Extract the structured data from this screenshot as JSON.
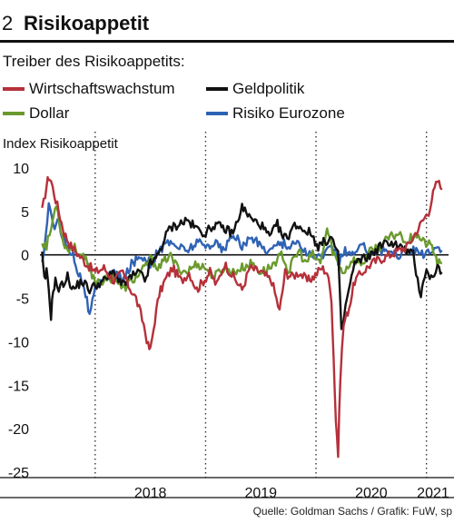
{
  "header": {
    "number": "2",
    "title": "Risikoappetit"
  },
  "subtitle": "Treiber des Risikoappetits:",
  "source": "Quelle: Goldman Sachs / Grafik: FuW, sp",
  "colors": {
    "Wirtschaftswachstum": "#b5303a",
    "Dollar": "#6a9a2d",
    "Geldpolitik": "#111111",
    "Risiko Eurozone": "#2f62b4"
  },
  "chart_data": {
    "type": "line",
    "ylabel": "Index Risikoappetit",
    "ylim": [
      -25,
      10
    ],
    "yticks": [
      10,
      5,
      0,
      -5,
      -10,
      -15,
      -20,
      -25
    ],
    "xlim": [
      2017.5,
      2021.2
    ],
    "xtick_labels": [
      "2018",
      "2019",
      "2020",
      "2021"
    ],
    "grid": "vertical-dotted",
    "legend_position": "top",
    "series": [
      {
        "name": "Wirtschaftswachstum",
        "color": "#b5303a",
        "x": [
          2017.52,
          2017.56,
          2017.58,
          2017.6,
          2017.63,
          2017.67,
          2017.72,
          2017.78,
          2017.85,
          2017.92,
          2018.0,
          2018.08,
          2018.17,
          2018.25,
          2018.3,
          2018.37,
          2018.44,
          2018.48,
          2018.5,
          2018.54,
          2018.58,
          2018.63,
          2018.7,
          2018.78,
          2018.85,
          2018.92,
          2018.98,
          2019.04,
          2019.1,
          2019.17,
          2019.25,
          2019.33,
          2019.4,
          2019.5,
          2019.6,
          2019.67,
          2019.72,
          2019.78,
          2019.85,
          2019.92,
          2019.98,
          2020.05,
          2020.1,
          2020.14,
          2020.16,
          2020.18,
          2020.2,
          2020.22,
          2020.25,
          2020.3,
          2020.35,
          2020.42,
          2020.5,
          2020.58,
          2020.67,
          2020.75,
          2020.83,
          2020.9,
          2020.97,
          2021.02,
          2021.06,
          2021.1,
          2021.14
        ],
        "y": [
          5,
          8,
          9,
          8.5,
          7,
          5,
          2.5,
          1,
          0,
          -1,
          -2,
          -1.5,
          -3,
          -2,
          -3.5,
          -5,
          -8,
          -10.5,
          -11,
          -7.5,
          -4.5,
          -3,
          -1.5,
          -3,
          -2,
          -4,
          -3,
          -2,
          -3.5,
          -1,
          -2.5,
          -4,
          -1.5,
          -2,
          -3,
          -6.5,
          -2,
          -2.5,
          -2,
          -3,
          -2.5,
          -1.5,
          -2,
          -5,
          -12,
          -19,
          -23,
          -14,
          -8,
          -6,
          -3,
          -2,
          -1,
          -0.5,
          0,
          0.5,
          1,
          2.5,
          4,
          5,
          7,
          8.5,
          7.5
        ]
      },
      {
        "name": "Dollar",
        "color": "#6a9a2d",
        "x": [
          2017.52,
          2017.56,
          2017.6,
          2017.65,
          2017.7,
          2017.75,
          2017.8,
          2017.87,
          2017.93,
          2018.0,
          2018.08,
          2018.17,
          2018.25,
          2018.33,
          2018.42,
          2018.5,
          2018.58,
          2018.67,
          2018.75,
          2018.83,
          2018.92,
          2019.0,
          2019.08,
          2019.17,
          2019.25,
          2019.33,
          2019.42,
          2019.5,
          2019.58,
          2019.65,
          2019.7,
          2019.75,
          2019.8,
          2019.85,
          2019.9,
          2019.97,
          2020.04,
          2020.1,
          2020.15,
          2020.2,
          2020.25,
          2020.33,
          2020.42,
          2020.5,
          2020.58,
          2020.67,
          2020.75,
          2020.83,
          2020.9,
          2020.97,
          2021.05,
          2021.1,
          2021.14
        ],
        "y": [
          1.5,
          1,
          3,
          6,
          2,
          0.5,
          1,
          0,
          -1,
          -3,
          -3,
          -2.5,
          -4,
          -3,
          -2,
          -0.5,
          -1.5,
          0,
          -1.5,
          -2,
          -1,
          -1.5,
          -2.5,
          -1.5,
          -2,
          -1.5,
          -1,
          -2,
          -1.5,
          -0.5,
          0,
          -2,
          -0.5,
          0.5,
          -1,
          0,
          -1,
          3,
          0.5,
          -1,
          -2,
          -0.5,
          -1,
          0.5,
          1,
          2,
          2.5,
          1.5,
          2.5,
          1.5,
          1,
          -1,
          -1
        ]
      },
      {
        "name": "Geldpolitik",
        "color": "#111111",
        "x": [
          2017.52,
          2017.54,
          2017.56,
          2017.58,
          2017.6,
          2017.62,
          2017.64,
          2017.67,
          2017.7,
          2017.75,
          2017.8,
          2017.88,
          2017.95,
          2018.0,
          2018.08,
          2018.17,
          2018.25,
          2018.33,
          2018.4,
          2018.45,
          2018.5,
          2018.55,
          2018.6,
          2018.67,
          2018.75,
          2018.83,
          2018.92,
          2019.0,
          2019.08,
          2019.17,
          2019.25,
          2019.33,
          2019.42,
          2019.5,
          2019.58,
          2019.65,
          2019.7,
          2019.74,
          2019.78,
          2019.82,
          2019.88,
          2019.95,
          2020.02,
          2020.08,
          2020.14,
          2020.17,
          2020.2,
          2020.23,
          2020.28,
          2020.35,
          2020.42,
          2020.5,
          2020.58,
          2020.67,
          2020.75,
          2020.82,
          2020.88,
          2020.92,
          2020.95,
          2020.97,
          2021.0,
          2021.03,
          2021.07,
          2021.1,
          2021.14
        ],
        "y": [
          0,
          -3,
          -2,
          -4,
          -7,
          -4,
          -3,
          -4,
          -3.5,
          -2.5,
          -4,
          -3,
          -4,
          -3.5,
          -3,
          -2,
          -3.5,
          -2.5,
          -2,
          -3,
          -1,
          -0.5,
          1,
          3,
          3.5,
          4,
          3,
          2.5,
          3.5,
          3,
          2.5,
          5.5,
          4,
          3.5,
          2,
          3.5,
          2,
          2,
          3,
          3.5,
          3,
          2.5,
          1,
          1.5,
          2,
          1,
          0,
          -9,
          -5,
          -1,
          -0.5,
          0,
          1,
          1.5,
          1,
          0.5,
          0,
          -3,
          -4.5,
          -3,
          -1.5,
          -3,
          -2,
          -1.5,
          -2
        ]
      },
      {
        "name": "Risiko Eurozone",
        "color": "#2f62b4",
        "x": [
          2017.52,
          2017.55,
          2017.58,
          2017.62,
          2017.66,
          2017.7,
          2017.75,
          2017.8,
          2017.85,
          2017.9,
          2017.95,
          2018.0,
          2018.05,
          2018.1,
          2018.17,
          2018.25,
          2018.33,
          2018.42,
          2018.5,
          2018.58,
          2018.67,
          2018.75,
          2018.83,
          2018.92,
          2019.0,
          2019.08,
          2019.17,
          2019.25,
          2019.33,
          2019.42,
          2019.5,
          2019.58,
          2019.67,
          2019.75,
          2019.83,
          2019.9,
          2019.97,
          2020.05,
          2020.12,
          2020.17,
          2020.2,
          2020.25,
          2020.33,
          2020.42,
          2020.5,
          2020.58,
          2020.67,
          2020.75,
          2020.83,
          2020.92,
          2021.0,
          2021.07,
          2021.14
        ],
        "y": [
          -1,
          2,
          6,
          3,
          4.5,
          2,
          1,
          0,
          -2,
          -3.5,
          -7,
          -4,
          -3,
          -2.5,
          -2,
          -3,
          -1,
          0,
          -1,
          0.5,
          1.5,
          1,
          0.5,
          1.5,
          1,
          1.5,
          0.5,
          2.5,
          1,
          2,
          1,
          0.5,
          1.5,
          1,
          1.5,
          0.5,
          -0.5,
          0,
          0.5,
          1,
          -1,
          0.5,
          0,
          1,
          0.5,
          0.5,
          0.5,
          0,
          0.5,
          0.5,
          0,
          0.5,
          0.5
        ]
      }
    ]
  }
}
